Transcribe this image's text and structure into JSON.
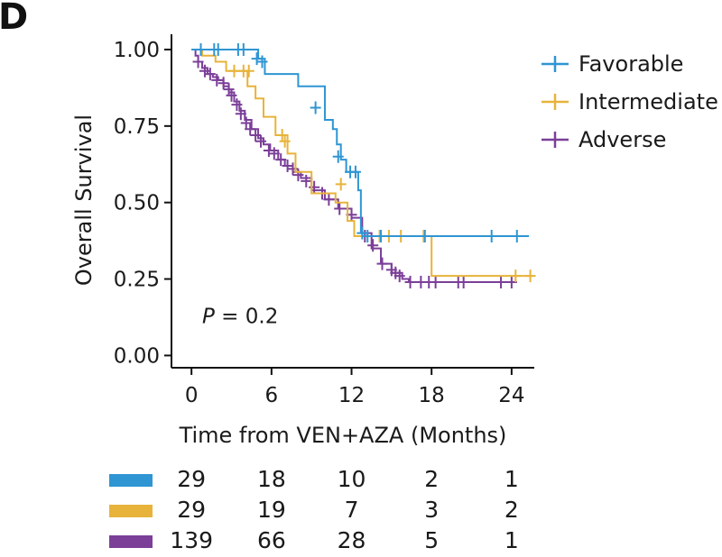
{
  "panel_label": "D",
  "chart_data": {
    "type": "line",
    "subtype": "kaplan-meier",
    "xlabel": "Time from VEN+AZA (Months)",
    "ylabel": "Overall Survival",
    "xlim": [
      -1.5,
      25.7
    ],
    "ylim": [
      -0.04,
      1.05
    ],
    "xticks": [
      0,
      6,
      12,
      18,
      24
    ],
    "xtick_labels": [
      "0",
      "6",
      "12",
      "18",
      "24"
    ],
    "yticks": [
      0,
      0.25,
      0.5,
      0.75,
      1.0
    ],
    "ytick_labels": [
      "0.00",
      "0.25",
      "0.50",
      "0.75",
      "1.00"
    ],
    "annotation": {
      "italic": "P",
      "rest": " = 0.2",
      "x": 0.8,
      "y": 0.13
    },
    "legend_position": "right",
    "series": [
      {
        "name": "Favorable",
        "color": "#2f95d3",
        "steps": [
          [
            0,
            1.0
          ],
          [
            5,
            0.97
          ],
          [
            5.5,
            0.92
          ],
          [
            8,
            0.88
          ],
          [
            10,
            0.77
          ],
          [
            10.6,
            0.74
          ],
          [
            10.9,
            0.69
          ],
          [
            11.2,
            0.64
          ],
          [
            11.6,
            0.6
          ],
          [
            12.5,
            0.54
          ],
          [
            12.7,
            0.4
          ],
          [
            13.2,
            0.39
          ],
          [
            25.3,
            0.39
          ]
        ],
        "censor": [
          [
            0.7,
            1.0
          ],
          [
            1.7,
            1.0
          ],
          [
            2.0,
            1.0
          ],
          [
            3.5,
            1.0
          ],
          [
            3.9,
            1.0
          ],
          [
            4.9,
            0.97
          ],
          [
            5.3,
            0.96
          ],
          [
            9.3,
            0.81
          ],
          [
            11.0,
            0.65
          ],
          [
            11.9,
            0.6
          ],
          [
            12.3,
            0.6
          ],
          [
            12.8,
            0.4
          ],
          [
            13.2,
            0.39
          ],
          [
            14.2,
            0.39
          ],
          [
            17.5,
            0.39
          ],
          [
            22.5,
            0.39
          ],
          [
            24.4,
            0.39
          ]
        ]
      },
      {
        "name": "Intermediate",
        "color": "#e8b33a",
        "steps": [
          [
            0,
            1.0
          ],
          [
            0.8,
            0.98
          ],
          [
            1.8,
            0.96
          ],
          [
            2.6,
            0.93
          ],
          [
            4.2,
            0.88
          ],
          [
            4.8,
            0.84
          ],
          [
            5.4,
            0.78
          ],
          [
            6.3,
            0.72
          ],
          [
            7.2,
            0.66
          ],
          [
            7.8,
            0.6
          ],
          [
            9.0,
            0.53
          ],
          [
            10.8,
            0.5
          ],
          [
            11.7,
            0.44
          ],
          [
            12.2,
            0.39
          ],
          [
            12.7,
            0.39
          ],
          [
            18.0,
            0.26
          ],
          [
            25.6,
            0.26
          ]
        ],
        "censor": [
          [
            3.2,
            0.93
          ],
          [
            3.9,
            0.93
          ],
          [
            4.3,
            0.93
          ],
          [
            6.8,
            0.72
          ],
          [
            7.0,
            0.7
          ],
          [
            11.2,
            0.56
          ],
          [
            14.1,
            0.39
          ],
          [
            14.8,
            0.39
          ],
          [
            15.7,
            0.39
          ],
          [
            17.4,
            0.39
          ],
          [
            24.3,
            0.26
          ],
          [
            25.4,
            0.26
          ]
        ]
      },
      {
        "name": "Adverse",
        "color": "#7b3f98",
        "steps": [
          [
            0,
            1.0
          ],
          [
            0.3,
            0.98
          ],
          [
            0.5,
            0.96
          ],
          [
            0.8,
            0.94
          ],
          [
            1.2,
            0.92
          ],
          [
            1.6,
            0.91
          ],
          [
            2.0,
            0.9
          ],
          [
            2.4,
            0.88
          ],
          [
            2.8,
            0.86
          ],
          [
            3.2,
            0.83
          ],
          [
            3.6,
            0.8
          ],
          [
            4.0,
            0.77
          ],
          [
            4.5,
            0.74
          ],
          [
            5.0,
            0.71
          ],
          [
            5.4,
            0.69
          ],
          [
            5.9,
            0.67
          ],
          [
            6.5,
            0.64
          ],
          [
            7.0,
            0.62
          ],
          [
            7.6,
            0.6
          ],
          [
            8.2,
            0.58
          ],
          [
            9.0,
            0.54
          ],
          [
            10.0,
            0.51
          ],
          [
            11.0,
            0.48
          ],
          [
            12.0,
            0.45
          ],
          [
            12.8,
            0.4
          ],
          [
            13.5,
            0.35
          ],
          [
            14.2,
            0.3
          ],
          [
            15.0,
            0.27
          ],
          [
            15.8,
            0.25
          ],
          [
            16.3,
            0.24
          ],
          [
            24.4,
            0.24
          ]
        ],
        "censor": [
          [
            0.5,
            0.96
          ],
          [
            1.0,
            0.93
          ],
          [
            1.4,
            0.92
          ],
          [
            1.9,
            0.9
          ],
          [
            2.4,
            0.89
          ],
          [
            2.8,
            0.87
          ],
          [
            3.0,
            0.85
          ],
          [
            3.4,
            0.82
          ],
          [
            3.7,
            0.79
          ],
          [
            4.1,
            0.76
          ],
          [
            4.4,
            0.74
          ],
          [
            4.8,
            0.72
          ],
          [
            5.2,
            0.7
          ],
          [
            5.8,
            0.67
          ],
          [
            6.2,
            0.66
          ],
          [
            6.7,
            0.64
          ],
          [
            7.2,
            0.62
          ],
          [
            7.6,
            0.61
          ],
          [
            8.0,
            0.59
          ],
          [
            8.6,
            0.57
          ],
          [
            9.2,
            0.55
          ],
          [
            9.8,
            0.53
          ],
          [
            10.3,
            0.51
          ],
          [
            11.1,
            0.48
          ],
          [
            12.0,
            0.46
          ],
          [
            13.0,
            0.39
          ],
          [
            13.6,
            0.36
          ],
          [
            14.3,
            0.3
          ],
          [
            15.0,
            0.28
          ],
          [
            15.3,
            0.27
          ],
          [
            15.6,
            0.26
          ],
          [
            16.4,
            0.24
          ],
          [
            17.2,
            0.24
          ],
          [
            17.8,
            0.24
          ],
          [
            18.3,
            0.24
          ],
          [
            20.0,
            0.24
          ],
          [
            20.4,
            0.24
          ],
          [
            23.2,
            0.24
          ],
          [
            24.0,
            0.24
          ]
        ]
      }
    ]
  },
  "risk_table": {
    "rows": [
      {
        "color": "#2f95d3",
        "values": [
          "29",
          "18",
          "10",
          "2",
          "1"
        ]
      },
      {
        "color": "#e8b33a",
        "values": [
          "29",
          "19",
          "7",
          "3",
          "2"
        ]
      },
      {
        "color": "#7b3f98",
        "values": [
          "139",
          "66",
          "28",
          "5",
          "1"
        ]
      }
    ]
  }
}
